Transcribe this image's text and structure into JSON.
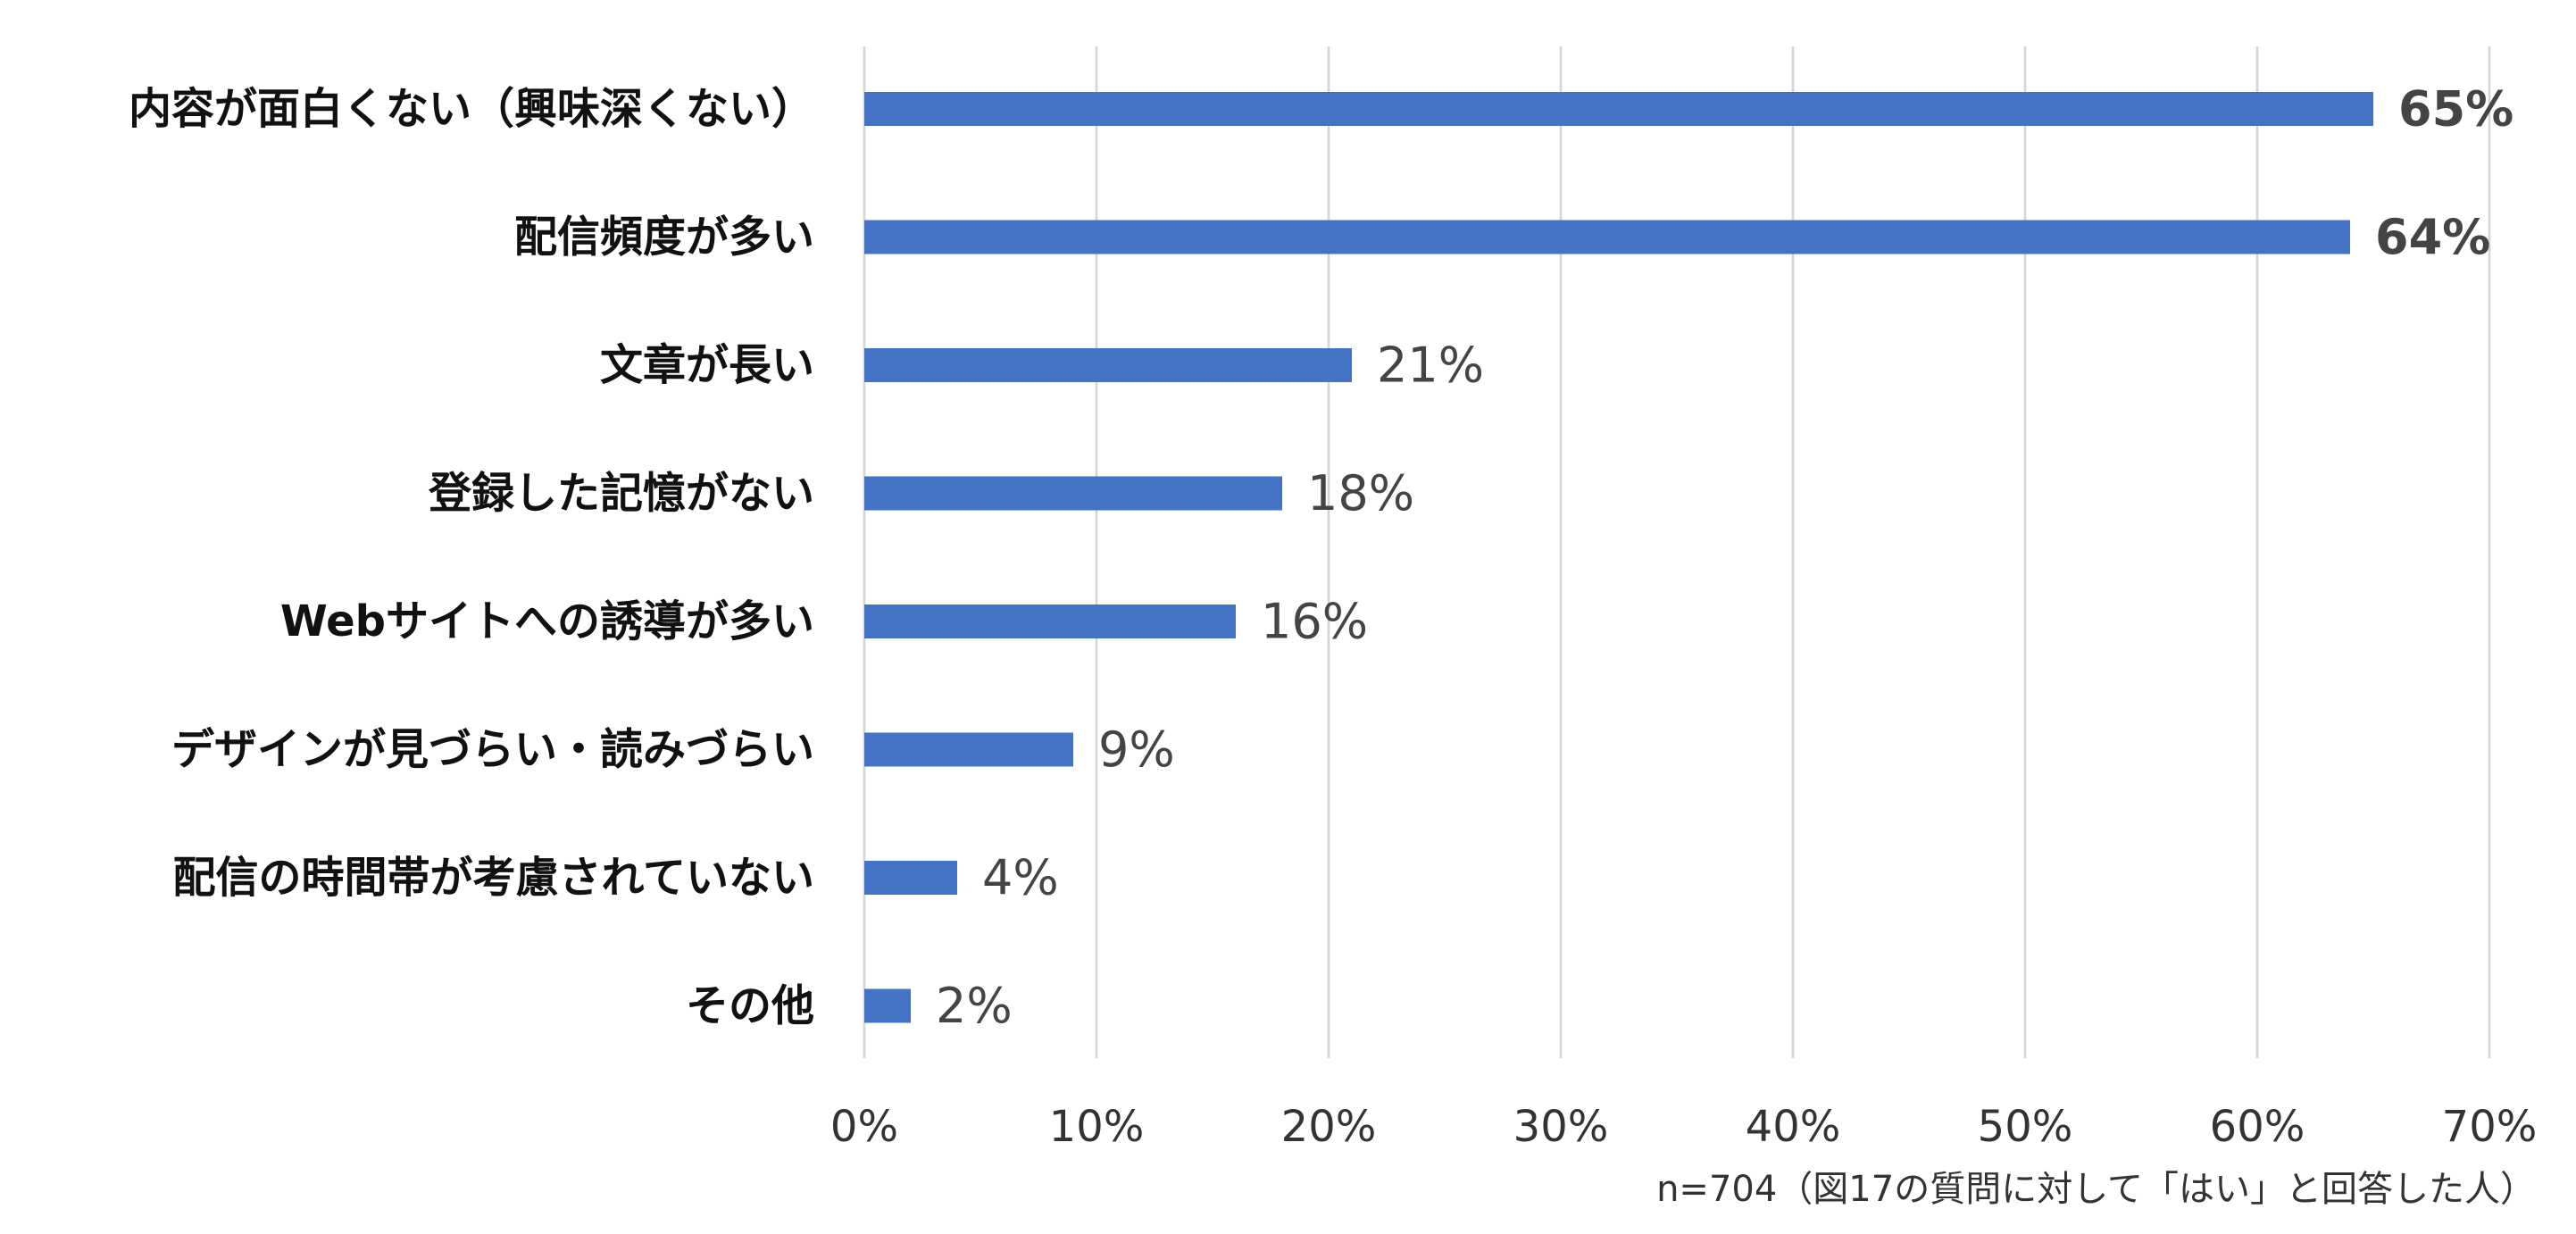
{
  "chart_data": {
    "type": "bar",
    "orientation": "horizontal",
    "categories": [
      "内容が面白くない（興味深くない）",
      "配信頻度が多い",
      "文章が長い",
      "登録した記憶がない",
      "Webサイトへの誘導が多い",
      "デザインが見づらい・読みづらい",
      "配信の時間帯が考慮されていない",
      "その他"
    ],
    "values": [
      65,
      64,
      21,
      18,
      16,
      9,
      4,
      2
    ],
    "value_labels": [
      "65%",
      "64%",
      "21%",
      "18%",
      "16%",
      "9%",
      "4%",
      "2%"
    ],
    "highlight_bold": [
      true,
      true,
      false,
      false,
      false,
      false,
      false,
      false
    ],
    "xlim": [
      0,
      70
    ],
    "xticks": [
      0,
      10,
      20,
      30,
      40,
      50,
      60,
      70
    ],
    "xtick_labels": [
      "0%",
      "10%",
      "20%",
      "30%",
      "40%",
      "50%",
      "60%",
      "70%"
    ],
    "grid": true,
    "bar_color": "#4472C4",
    "note": "n=704（図17の質問に対して「はい」と回答した人）"
  }
}
